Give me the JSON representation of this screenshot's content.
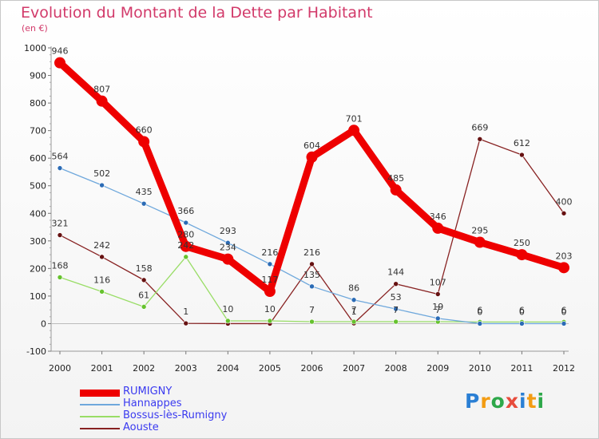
{
  "title": "Evolution du Montant de la Dette par Habitant",
  "subtitle": "(en €)",
  "logo": {
    "letters": [
      "P",
      "r",
      "o",
      "x",
      "i",
      "t",
      "i"
    ],
    "colors": [
      "#2a7fd4",
      "#f39c12",
      "#2ea84a",
      "#e74c3c",
      "#2a7fd4",
      "#f39c12",
      "#2ea84a"
    ]
  },
  "chart_data": {
    "type": "line",
    "title": "Evolution du Montant de la Dette par Habitant",
    "ylabel": "(en €)",
    "xlabel": "",
    "x": [
      "2000",
      "2001",
      "2002",
      "2003",
      "2004",
      "2005",
      "2006",
      "2007",
      "2008",
      "2009",
      "2010",
      "2011",
      "2012"
    ],
    "ylim": [
      -100,
      1000
    ],
    "yticks": [
      "-100",
      "0",
      "100",
      "200",
      "300",
      "400",
      "500",
      "600",
      "700",
      "800",
      "900",
      "1000"
    ],
    "grid": false,
    "legend": "bottom-left",
    "series": [
      {
        "name": "RUMIGNY",
        "color": "#ee0000",
        "marker": "#ee0000",
        "values": [
          946,
          807,
          660,
          280,
          234,
          117,
          604,
          701,
          485,
          346,
          295,
          250,
          203
        ],
        "labels": [
          "946",
          "807",
          "660",
          "280",
          "234",
          "117",
          "604",
          "701",
          "485",
          "346",
          "295",
          "250",
          "203"
        ]
      },
      {
        "name": "Hannappes",
        "color": "#6fa8dc",
        "marker": "#2b6bb5",
        "values": [
          564,
          502,
          435,
          366,
          293,
          216,
          135,
          86,
          53,
          19,
          0,
          0,
          0
        ],
        "labels": [
          "564",
          "502",
          "435",
          "366",
          "293",
          "216",
          "135",
          "86",
          "53",
          "19",
          "0",
          "0",
          "0"
        ]
      },
      {
        "name": "Bossus-lès-Rumigny",
        "color": "#99dd66",
        "marker": "#66c22e",
        "values": [
          168,
          116,
          61,
          242,
          10,
          10,
          7,
          7,
          7,
          7,
          6,
          6,
          6
        ],
        "labels": [
          "168",
          "116",
          "61",
          "242",
          "10",
          "10",
          "7",
          "7",
          "7",
          "7",
          "6",
          "6",
          "6"
        ]
      },
      {
        "name": "Aouste",
        "color": "#882222",
        "marker": "#661111",
        "values": [
          321,
          242,
          158,
          1,
          0,
          0,
          216,
          1,
          144,
          107,
          669,
          612,
          400
        ],
        "labels": [
          "321",
          "242",
          "158",
          "1",
          "",
          "",
          "216",
          "1",
          "144",
          "107",
          "669",
          "612",
          "400"
        ]
      }
    ]
  }
}
